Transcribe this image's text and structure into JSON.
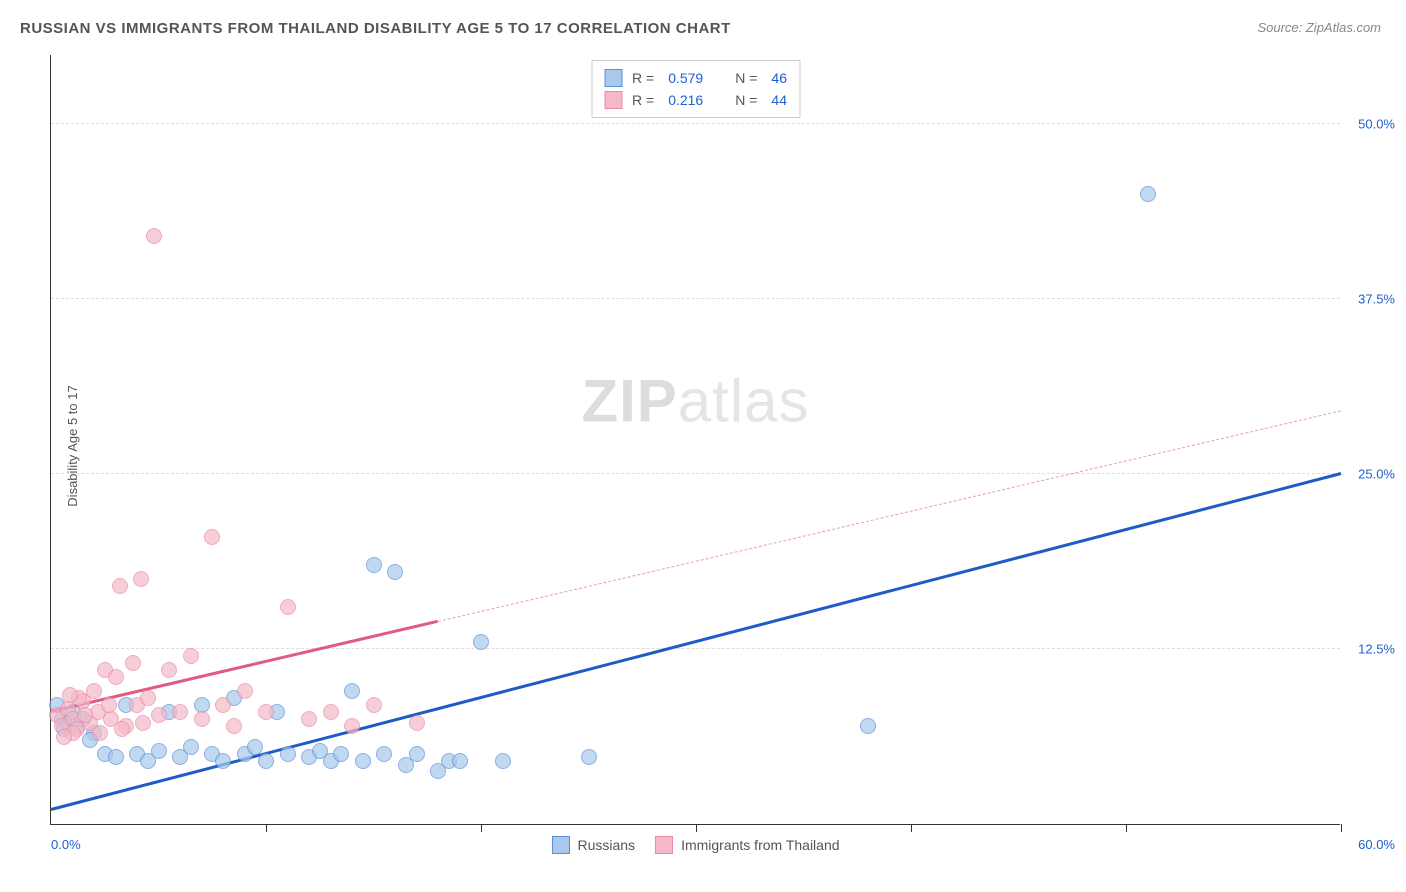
{
  "title": "RUSSIAN VS IMMIGRANTS FROM THAILAND DISABILITY AGE 5 TO 17 CORRELATION CHART",
  "source": "Source: ZipAtlas.com",
  "y_axis_label": "Disability Age 5 to 17",
  "watermark_bold": "ZIP",
  "watermark_thin": "atlas",
  "chart": {
    "type": "scatter",
    "xlim": [
      0,
      60
    ],
    "ylim": [
      0,
      55
    ],
    "x_tick_labels": {
      "min": "0.0%",
      "max": "60.0%"
    },
    "y_ticks": [
      {
        "val": 12.5,
        "label": "12.5%"
      },
      {
        "val": 25.0,
        "label": "25.0%"
      },
      {
        "val": 37.5,
        "label": "37.5%"
      },
      {
        "val": 50.0,
        "label": "50.0%"
      }
    ],
    "x_tick_positions": [
      10,
      20,
      30,
      40,
      50,
      60
    ],
    "grid_color": "#dddddd",
    "background_color": "#ffffff",
    "axis_color": "#333333",
    "label_color": "#2060d0",
    "title_color": "#555555",
    "series": [
      {
        "name": "Russians",
        "fill": "#a8c8ec",
        "stroke": "#5b8fd6",
        "trend_color": "#1e5bc6",
        "R": "0.579",
        "N": "46",
        "trend": {
          "x1": 0,
          "y1": 1.0,
          "x2": 60,
          "y2": 25.0,
          "solid_until_x": 60
        },
        "points": [
          [
            0.5,
            7.5
          ],
          [
            0.8,
            7.2
          ],
          [
            1.0,
            8.0
          ],
          [
            1.2,
            7.0
          ],
          [
            0.3,
            8.5
          ],
          [
            0.6,
            6.8
          ],
          [
            1.5,
            7.5
          ],
          [
            2.0,
            6.5
          ],
          [
            2.5,
            5.0
          ],
          [
            3.0,
            4.8
          ],
          [
            3.5,
            8.5
          ],
          [
            4.0,
            5.0
          ],
          [
            4.5,
            4.5
          ],
          [
            5.0,
            5.2
          ],
          [
            5.5,
            8.0
          ],
          [
            6.0,
            4.8
          ],
          [
            6.5,
            5.5
          ],
          [
            7.0,
            8.5
          ],
          [
            7.5,
            5.0
          ],
          [
            8.0,
            4.5
          ],
          [
            8.5,
            9.0
          ],
          [
            9.0,
            5.0
          ],
          [
            9.5,
            5.5
          ],
          [
            10.0,
            4.5
          ],
          [
            10.5,
            8.0
          ],
          [
            11.0,
            5.0
          ],
          [
            12.0,
            4.8
          ],
          [
            12.5,
            5.2
          ],
          [
            13.0,
            4.5
          ],
          [
            13.5,
            5.0
          ],
          [
            14.0,
            9.5
          ],
          [
            14.5,
            4.5
          ],
          [
            15.0,
            18.5
          ],
          [
            15.5,
            5.0
          ],
          [
            16.0,
            18.0
          ],
          [
            16.5,
            4.2
          ],
          [
            17.0,
            5.0
          ],
          [
            18.0,
            3.8
          ],
          [
            18.5,
            4.5
          ],
          [
            19.0,
            4.5
          ],
          [
            20.0,
            13.0
          ],
          [
            21.0,
            4.5
          ],
          [
            25.0,
            4.8
          ],
          [
            38.0,
            7.0
          ],
          [
            51.0,
            45.0
          ],
          [
            1.8,
            6.0
          ]
        ]
      },
      {
        "name": "Immigrants from Thailand",
        "fill": "#f5b8c8",
        "stroke": "#e88aa5",
        "trend_color": "#e05a85",
        "R": "0.216",
        "N": "44",
        "trend": {
          "x1": 0,
          "y1": 8.0,
          "x2": 60,
          "y2": 29.5,
          "solid_until_x": 18
        },
        "points": [
          [
            0.3,
            7.8
          ],
          [
            0.5,
            7.0
          ],
          [
            0.8,
            8.2
          ],
          [
            1.0,
            7.5
          ],
          [
            1.2,
            6.8
          ],
          [
            1.5,
            8.8
          ],
          [
            1.8,
            7.2
          ],
          [
            2.0,
            9.5
          ],
          [
            2.2,
            8.0
          ],
          [
            2.5,
            11.0
          ],
          [
            2.8,
            7.5
          ],
          [
            3.0,
            10.5
          ],
          [
            3.2,
            17.0
          ],
          [
            3.5,
            7.0
          ],
          [
            3.8,
            11.5
          ],
          [
            4.0,
            8.5
          ],
          [
            4.2,
            17.5
          ],
          [
            4.5,
            9.0
          ],
          [
            4.8,
            42.0
          ],
          [
            5.0,
            7.8
          ],
          [
            5.5,
            11.0
          ],
          [
            6.0,
            8.0
          ],
          [
            6.5,
            12.0
          ],
          [
            7.0,
            7.5
          ],
          [
            7.5,
            20.5
          ],
          [
            8.0,
            8.5
          ],
          [
            8.5,
            7.0
          ],
          [
            9.0,
            9.5
          ],
          [
            10.0,
            8.0
          ],
          [
            11.0,
            15.5
          ],
          [
            12.0,
            7.5
          ],
          [
            13.0,
            8.0
          ],
          [
            14.0,
            7.0
          ],
          [
            15.0,
            8.5
          ],
          [
            17.0,
            7.2
          ],
          [
            1.0,
            6.5
          ],
          [
            1.3,
            9.0
          ],
          [
            1.6,
            7.8
          ],
          [
            2.3,
            6.5
          ],
          [
            2.7,
            8.5
          ],
          [
            3.3,
            6.8
          ],
          [
            4.3,
            7.2
          ],
          [
            0.6,
            6.2
          ],
          [
            0.9,
            9.2
          ]
        ]
      }
    ],
    "stats_labels": {
      "R": "R =",
      "N": "N ="
    },
    "legend": [
      {
        "label": "Russians",
        "fill": "#a8c8ec",
        "stroke": "#5b8fd6"
      },
      {
        "label": "Immigrants from Thailand",
        "fill": "#f5b8c8",
        "stroke": "#e88aa5"
      }
    ]
  }
}
